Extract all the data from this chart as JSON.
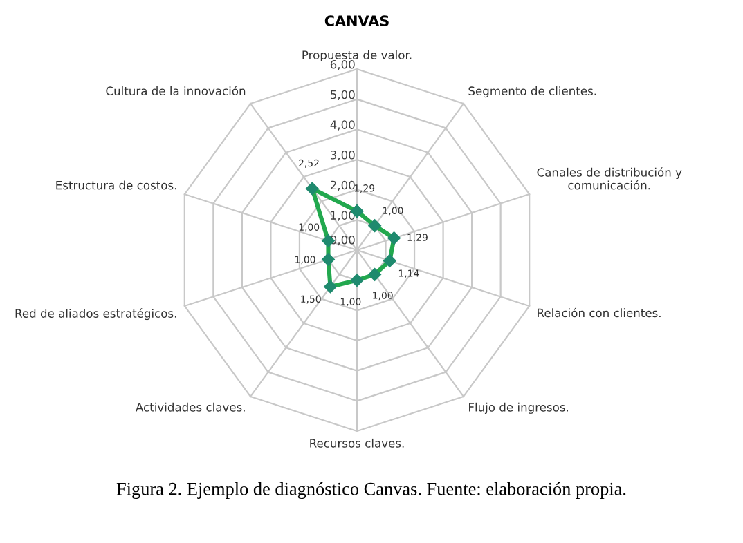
{
  "chart_data": {
    "type": "radar",
    "title": "CANVAS",
    "categories": [
      "Propuesta de valor.",
      "Segmento de clientes.",
      "Canales de distribución y comunicación.",
      "Relación con clientes.",
      "Flujo de ingresos.",
      "Recursos claves.",
      "Actividades claves.",
      "Red de aliados estratégicos.",
      "Estructura de costos.",
      "Cultura de la innovación"
    ],
    "series": [
      {
        "color": "#22a84e",
        "values": [
          1.29,
          1.0,
          1.29,
          1.14,
          1.0,
          1.0,
          1.5,
          1.0,
          1.0,
          2.52
        ],
        "value_labels": [
          "1,29",
          "1,00",
          "1,29",
          "1,14",
          "1,00",
          "1,00",
          "1,50",
          "1,00",
          "1,00",
          "2,52"
        ]
      }
    ],
    "ylim": [
      0,
      6
    ],
    "yticks": [
      {
        "value": 0,
        "label": "0,00"
      },
      {
        "value": 1,
        "label": "1,00"
      },
      {
        "value": 2,
        "label": "2,00"
      },
      {
        "value": 3,
        "label": "3,00"
      },
      {
        "value": 4,
        "label": "4,00"
      },
      {
        "value": 5,
        "label": "5,00"
      },
      {
        "value": 6,
        "label": "6,00"
      }
    ],
    "grid": true,
    "marker": "diamond",
    "annotations": [
      "Figura 2. Ejemplo de diagnóstico Canvas. Fuente: elaboración propia."
    ]
  }
}
